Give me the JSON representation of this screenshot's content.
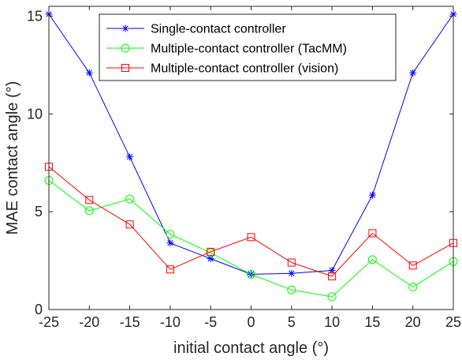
{
  "chart_data": {
    "type": "line",
    "x": [
      -25,
      -20,
      -15,
      -10,
      -5,
      0,
      5,
      10,
      15,
      20,
      25
    ],
    "xlabel": "initial contact angle (°)",
    "ylabel": "MAE contact angle (°)",
    "xlim": [
      -25,
      25
    ],
    "ylim": [
      0,
      15.5
    ],
    "xticks": [
      "-25",
      "-20",
      "-15",
      "-10",
      "-5",
      "0",
      "5",
      "10",
      "15",
      "20",
      "25"
    ],
    "yticks": [
      "0",
      "5",
      "10",
      "15"
    ],
    "grid": false,
    "legend_position": "top-right",
    "series": [
      {
        "name": "Single-contact controller",
        "color": "#0000ff",
        "marker": "asterisk",
        "values": [
          15.1,
          12.1,
          7.8,
          3.4,
          2.6,
          1.8,
          1.85,
          2.0,
          5.85,
          12.1,
          15.1
        ]
      },
      {
        "name": "Multiple-contact controller (TacMM)",
        "color": "#00ff00",
        "marker": "circle",
        "values": [
          6.6,
          5.05,
          5.65,
          3.85,
          2.9,
          1.8,
          1.0,
          0.65,
          2.55,
          1.15,
          2.45
        ]
      },
      {
        "name": "Multiple-contact controller (vision)",
        "color": "#ff0000",
        "marker": "square",
        "values": [
          7.3,
          5.6,
          4.35,
          2.05,
          2.95,
          3.7,
          2.4,
          1.7,
          3.9,
          2.25,
          3.4
        ]
      }
    ]
  }
}
